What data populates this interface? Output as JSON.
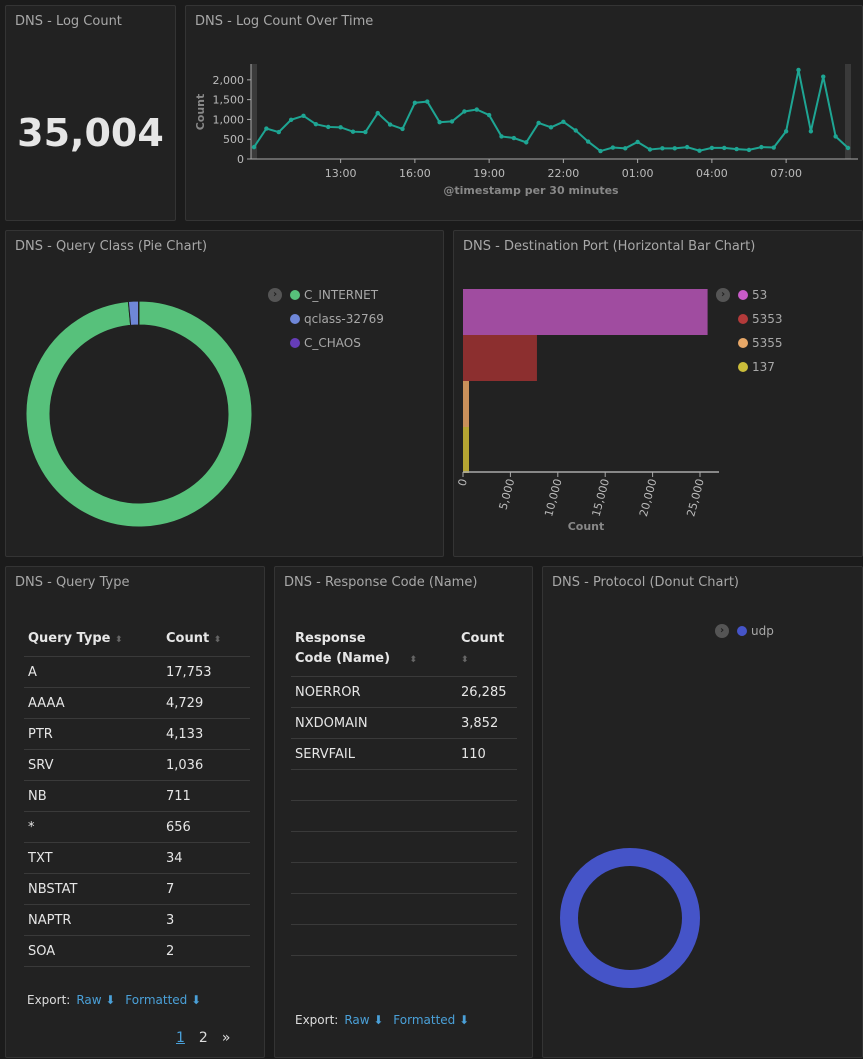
{
  "panels": {
    "log_count": {
      "title": "DNS - Log Count",
      "value": "35,004"
    },
    "over_time": {
      "title": "DNS - Log Count Over Time"
    },
    "query_class": {
      "title": "DNS - Query Class (Pie Chart)"
    },
    "dest_port": {
      "title": "DNS - Destination Port (Horizontal Bar Chart)"
    },
    "query_type": {
      "title": "DNS - Query Type",
      "headers": [
        "Query Type",
        "Count"
      ],
      "rows": [
        [
          "A",
          "17,753"
        ],
        [
          "AAAA",
          "4,729"
        ],
        [
          "PTR",
          "4,133"
        ],
        [
          "SRV",
          "1,036"
        ],
        [
          "NB",
          "711"
        ],
        [
          "*",
          "656"
        ],
        [
          "TXT",
          "34"
        ],
        [
          "NBSTAT",
          "7"
        ],
        [
          "NAPTR",
          "3"
        ],
        [
          "SOA",
          "2"
        ]
      ],
      "export_label": "Export:",
      "raw": "Raw",
      "formatted": "Formatted",
      "pages": [
        "1",
        "2",
        "»"
      ]
    },
    "response_code": {
      "title": "DNS - Response Code (Name)",
      "headers": [
        "Response Code (Name)",
        "Count"
      ],
      "rows": [
        [
          "NOERROR",
          "26,285"
        ],
        [
          "NXDOMAIN",
          "3,852"
        ],
        [
          "SERVFAIL",
          "110"
        ]
      ],
      "export_label": "Export:",
      "raw": "Raw",
      "formatted": "Formatted"
    },
    "protocol": {
      "title": "DNS - Protocol (Donut Chart)"
    }
  },
  "chart_data": [
    {
      "type": "line",
      "title": "DNS - Log Count Over Time",
      "xlabel": "@timestamp per 30 minutes",
      "ylabel": "Count",
      "ylim": [
        0,
        2400
      ],
      "yticks": [
        "0",
        "500",
        "1,000",
        "1,500",
        "2,000"
      ],
      "xticks": [
        "13:00",
        "16:00",
        "19:00",
        "22:00",
        "01:00",
        "04:00",
        "07:00"
      ],
      "color": "#1ea593",
      "x": [
        "09:30",
        "10:00",
        "10:30",
        "11:00",
        "11:30",
        "12:00",
        "12:30",
        "13:00",
        "13:30",
        "14:00",
        "14:30",
        "15:00",
        "15:30",
        "16:00",
        "16:30",
        "17:00",
        "17:30",
        "18:00",
        "18:30",
        "19:00",
        "19:30",
        "20:00",
        "20:30",
        "21:00",
        "21:30",
        "22:00",
        "22:30",
        "23:00",
        "23:30",
        "00:00",
        "00:30",
        "01:00",
        "01:30",
        "02:00",
        "02:30",
        "03:00",
        "03:30",
        "04:00",
        "04:30",
        "05:00",
        "05:30",
        "06:00",
        "06:30",
        "07:00",
        "07:30",
        "08:00",
        "08:30",
        "09:00",
        "09:30"
      ],
      "values": [
        300,
        770,
        680,
        990,
        1090,
        880,
        810,
        800,
        690,
        680,
        1160,
        870,
        760,
        1420,
        1450,
        930,
        950,
        1200,
        1250,
        1110,
        570,
        530,
        420,
        910,
        800,
        940,
        720,
        440,
        200,
        290,
        270,
        430,
        240,
        270,
        270,
        300,
        210,
        280,
        280,
        250,
        230,
        300,
        290,
        700,
        2250,
        700,
        2080,
        570,
        280
      ]
    },
    {
      "type": "pie",
      "title": "DNS - Query Class (Pie Chart)",
      "donut": true,
      "series": [
        {
          "name": "C_INTERNET",
          "value": 34480,
          "color": "#57c17b"
        },
        {
          "name": "qclass-32769",
          "value": 500,
          "color": "#6f87d8"
        },
        {
          "name": "C_CHAOS",
          "value": 24,
          "color": "#663db8"
        }
      ]
    },
    {
      "type": "bar",
      "orientation": "horizontal",
      "title": "DNS - Destination Port (Horizontal Bar Chart)",
      "xlabel": "Count",
      "xlim": [
        0,
        26000
      ],
      "xticks": [
        "0",
        "5,000",
        "10,000",
        "15,000",
        "20,000",
        "25,000"
      ],
      "series": [
        {
          "name": "53",
          "value": 25800,
          "color": "#a04ca0"
        },
        {
          "name": "5353",
          "value": 7800,
          "color": "#8c2f2f"
        },
        {
          "name": "5355",
          "value": 600,
          "color": "#c9905a"
        },
        {
          "name": "137",
          "value": 600,
          "color": "#b5a532"
        }
      ],
      "legend_colors": [
        "#c85bc8",
        "#b33a3a",
        "#e8a868",
        "#cbbd3a"
      ]
    },
    {
      "type": "pie",
      "title": "DNS - Protocol (Donut Chart)",
      "donut": true,
      "series": [
        {
          "name": "udp",
          "value": 35004,
          "color": "#4554c8"
        }
      ]
    }
  ]
}
